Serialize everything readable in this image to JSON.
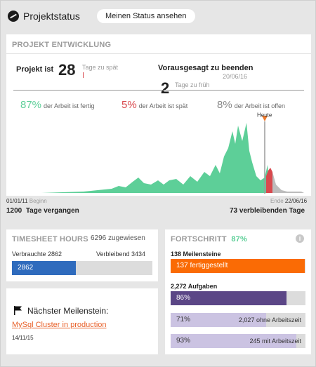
{
  "header": {
    "title": "Projektstatus",
    "status_button": "Meinen Status ansehen"
  },
  "dev": {
    "title": "PROJEKT ENTWICKLUNG",
    "project_is_label": "Projekt ist",
    "days_late": "28",
    "days_late_note": "Tage zu spät",
    "forecast_label": "Vorausgesagt zu beenden",
    "forecast_date": "20/06/16",
    "days_early": "2",
    "days_early_note": "Tage zu früh",
    "pct_done": "87%",
    "pct_done_label": "der Arbeit ist fertig",
    "pct_late": "5%",
    "pct_late_label": "der Arbeit ist spät",
    "pct_open": "8%",
    "pct_open_label": "der Arbeit ist offen",
    "today_label": "Heute",
    "start_date": "01/01/11",
    "start_label": "Beginn",
    "end_label": "Ende",
    "end_date": "22/06/16",
    "days_passed": "1200",
    "days_passed_label": "Tage vergangen",
    "days_left": "73",
    "days_left_label": "verbleibenden Tage"
  },
  "colors": {
    "done": "#5dcf98",
    "late": "#d9494e",
    "open": "#bdbdbd",
    "today_marker": "#ee7a2c",
    "spent": "#2f6bbd",
    "milestones": "#fa6b05",
    "tasks": "#5b4686",
    "tasks_light": "#cbc3e2"
  },
  "timesheet": {
    "title": "TIMESHEET HOURS",
    "assigned": "6296 zugewiesen",
    "spent_label": "Verbrauchte 2862",
    "remaining_label": "Verbleibend 3434",
    "spent_value": "2862",
    "spent_fraction": 0.4546
  },
  "milestone": {
    "title": "Nächster Meilenstein:",
    "name": "MySql Cluster in production",
    "date": "14/11/15"
  },
  "progress": {
    "title": "FORTSCHRITT",
    "pct": "87%",
    "info": "i",
    "milestones_title": "138 Meilensteine",
    "milestones_bar": "137 fertiggestellt",
    "milestones_fraction": 0.993,
    "tasks_title": "2,272 Aufgaben",
    "tasks_bar": "86%",
    "tasks_fraction": 0.86,
    "no_time_pct": "71%",
    "no_time_label": "2,027 ohne Arbeitszeit",
    "no_time_fraction": 0.71,
    "with_time_pct": "93%",
    "with_time_label": "245 mit Arbeitszeit",
    "with_time_fraction": 0.93
  }
}
